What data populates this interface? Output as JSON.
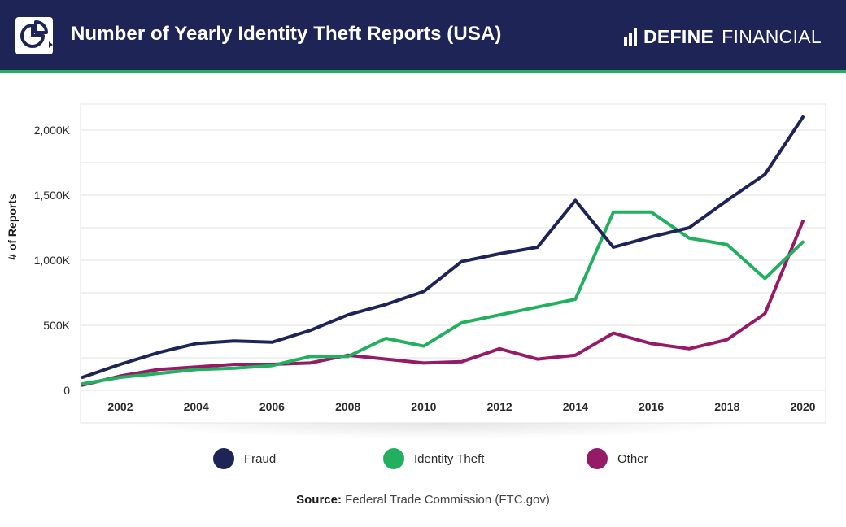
{
  "header": {
    "title": "Number of Yearly Identity Theft Reports (USA)",
    "brand_bold": "DEFINE",
    "brand_light": "FINANCIAL",
    "logo_icon": "pie-chart-icon",
    "brand_icon": "bar-chart-icon"
  },
  "colors": {
    "header_bg": "#1e2456",
    "accent": "#22b060",
    "fraud": "#1e2456",
    "identity_theft": "#22b060",
    "other": "#951b66"
  },
  "chart_data": {
    "type": "line",
    "title": "",
    "xlabel": "",
    "ylabel": "# of Reports",
    "x": [
      2001,
      2002,
      2003,
      2004,
      2005,
      2006,
      2007,
      2008,
      2009,
      2010,
      2011,
      2012,
      2013,
      2014,
      2015,
      2016,
      2017,
      2018,
      2019,
      2020
    ],
    "xticks": [
      "2002",
      "2004",
      "2006",
      "2008",
      "2010",
      "2012",
      "2014",
      "2016",
      "2018",
      "2020"
    ],
    "yticks": [
      "0",
      "500K",
      "1,000K",
      "1,500K",
      "2,000K"
    ],
    "ylim": [
      0,
      2200
    ],
    "grid": true,
    "legend_position": "bottom",
    "series": [
      {
        "name": "Fraud",
        "color": "#1e2456",
        "values": [
          100,
          200,
          290,
          360,
          380,
          370,
          460,
          580,
          660,
          760,
          990,
          1050,
          1100,
          1460,
          1100,
          1180,
          1250,
          1460,
          1660,
          2100
        ]
      },
      {
        "name": "Identity Theft",
        "color": "#22b060",
        "values": [
          50,
          100,
          130,
          160,
          170,
          190,
          260,
          260,
          400,
          340,
          520,
          580,
          640,
          700,
          1370,
          1370,
          1170,
          1120,
          860,
          1140
        ]
      },
      {
        "name": "Other",
        "color": "#951b66",
        "values": [
          40,
          110,
          160,
          180,
          200,
          200,
          210,
          270,
          240,
          210,
          220,
          320,
          240,
          270,
          440,
          360,
          320,
          390,
          590,
          1300
        ]
      }
    ]
  },
  "legend": [
    {
      "label": "Fraud",
      "color": "#1e2456"
    },
    {
      "label": "Identity Theft",
      "color": "#22b060"
    },
    {
      "label": "Other",
      "color": "#951b66"
    }
  ],
  "source": {
    "label": "Source:",
    "text": "Federal Trade Commission (FTC.gov)"
  }
}
